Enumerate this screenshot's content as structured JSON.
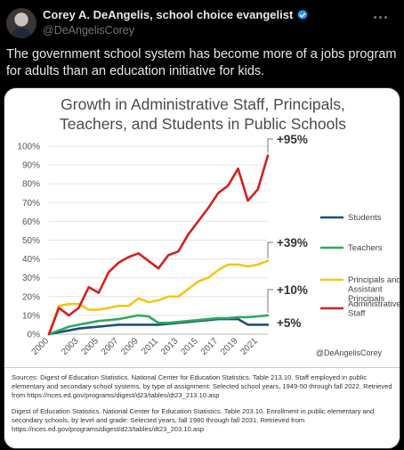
{
  "post": {
    "display_name": "Corey A. DeAngelis, school choice evangelist",
    "handle": "@DeAngelisCorey",
    "text": "The government school system has become more of a jobs program for adults than an education initiative for kids.",
    "verified_color": "#1d9bf0"
  },
  "icons": {
    "verified": "verified-badge-icon",
    "more": "more-options-icon",
    "avatar": "profile-photo"
  },
  "chart_data": {
    "type": "line",
    "title": "Growth in Administrative Staff, Principals, Teachers, and Students in Public Schools",
    "title_lines": [
      "Growth in Administrative Staff, Principals,",
      "Teachers, and Students in Public Schools"
    ],
    "xlabel": "",
    "ylabel": "",
    "ylim": [
      0,
      100
    ],
    "y_ticks": [
      "0%",
      "10%",
      "20%",
      "30%",
      "40%",
      "50%",
      "60%",
      "70%",
      "80%",
      "90%",
      "100%"
    ],
    "x_ticks": [
      "2000",
      "2003",
      "2005",
      "2007",
      "2009",
      "2011",
      "2013",
      "2015",
      "2017",
      "2019",
      "2021"
    ],
    "x": [
      2000,
      2001,
      2002,
      2003,
      2004,
      2005,
      2006,
      2007,
      2008,
      2009,
      2010,
      2011,
      2012,
      2013,
      2014,
      2015,
      2016,
      2017,
      2018,
      2019,
      2020,
      2021,
      2022
    ],
    "series": [
      {
        "name": "Students",
        "color": "#1f4e79",
        "values": [
          0,
          1,
          2,
          3,
          3.5,
          4,
          4.5,
          5,
          5,
          5,
          5,
          5,
          5.5,
          6,
          6.5,
          7,
          7.5,
          8,
          8,
          8,
          5,
          5,
          5
        ]
      },
      {
        "name": "Teachers",
        "color": "#2eaa5c",
        "values": [
          0,
          2,
          4,
          5,
          6,
          7,
          7.5,
          8,
          9,
          10,
          9.5,
          6,
          6,
          6.5,
          7,
          7.5,
          8,
          8.5,
          8.5,
          9,
          9,
          9.5,
          10
        ]
      },
      {
        "name": "Principals and Assistant Principals",
        "color": "#f5c518",
        "values": [
          0,
          15,
          16,
          16,
          13,
          13,
          14,
          15,
          15,
          19,
          17,
          18,
          20,
          20,
          24,
          28,
          30,
          34,
          37,
          37,
          36,
          37,
          39
        ]
      },
      {
        "name": "Administrative Staff",
        "color": "#d42020",
        "values": [
          0,
          14,
          10,
          14,
          25,
          22,
          33,
          38,
          41,
          43,
          39,
          35,
          42,
          44,
          53,
          60,
          67,
          75,
          79,
          88,
          71,
          77,
          95
        ]
      }
    ],
    "annotations": [
      "+95%",
      "+39%",
      "+10%",
      "+5%"
    ],
    "legend_placement": "right",
    "grid": true
  },
  "watermark": "@DeAngelisCorey",
  "sources": [
    "Sources: Digest of Education Statistics. National Center for Education Statistics. Table 213.10. Staff employed in public elementary and secondary school systems, by type of assignment: Selected school years, 1949-50 through fall 2022. Retrieved from https://nces.ed.gov/programs/digest/d23/tables/dt23_213.10.asp",
    "Digest of Education Statistics. National Center for Education Statistics. Table 203.10. Enrollment in public elementary and secondary schools, by level and grade: Selected years, fall 1980 through fall 2031. Retrieved from https://nces.ed.gov/programs/digest/d23/tables/dt23_203.10.asp"
  ]
}
